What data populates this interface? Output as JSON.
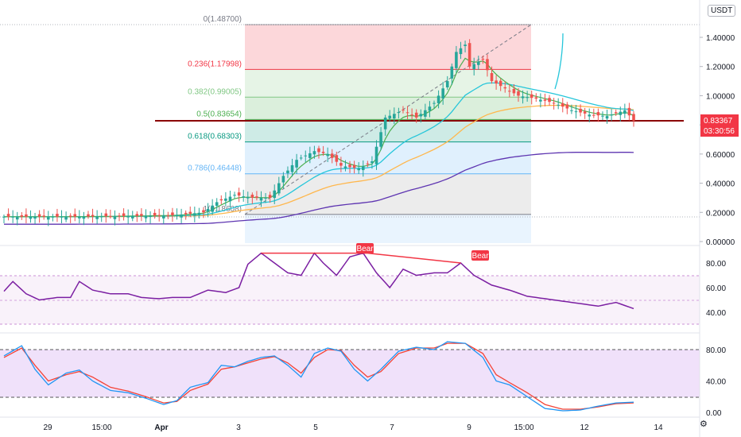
{
  "header": {
    "currency": "USDT"
  },
  "price_axis": {
    "ticks": [
      "1.40000",
      "1.20000",
      "1.00000",
      "0.80000",
      "0.60000",
      "0.40000",
      "0.20000",
      "0.00000"
    ]
  },
  "rsi_axis": {
    "ticks": [
      "80.00",
      "60.00",
      "40.00"
    ]
  },
  "stoch_axis": {
    "ticks": [
      "80.00",
      "40.00",
      "0.00"
    ]
  },
  "time_axis": {
    "ticks": [
      "29",
      "15:00",
      "Apr",
      "3",
      "5",
      "7",
      "9",
      "15:00",
      "12",
      "14"
    ]
  },
  "price_tag": {
    "value": "0.83367",
    "countdown": "03:30:56"
  },
  "fib_levels": [
    {
      "label": "0(1.48700)",
      "price": 1.487,
      "color": "#787b86"
    },
    {
      "label": "0.236(1.17998)",
      "price": 1.17998,
      "color": "#f23645"
    },
    {
      "label": "0.382(0.99005)",
      "price": 0.99005,
      "color": "#81c784"
    },
    {
      "label": "0.5(0.83654)",
      "price": 0.83654,
      "color": "#4caf50"
    },
    {
      "label": "0.618(0.68303)",
      "price": 0.68303,
      "color": "#089981"
    },
    {
      "label": "0.786(0.46448)",
      "price": 0.46448,
      "color": "#64b5f6"
    },
    {
      "label": "1(0.18608)",
      "price": 0.18608,
      "color": "#787b86"
    }
  ],
  "divergence_labels": [
    "Bear",
    "Bear"
  ],
  "colors": {
    "up": "#26a69a",
    "down": "#ef5350",
    "ma_fast": "#4caf50",
    "ma_mid": "#26c6da",
    "ma_slow": "#ffb74d",
    "ma_long": "#5e35b1",
    "rsi": "#7b1fa2",
    "stoch_k": "#2196f3",
    "stoch_d": "#f44336",
    "hline": "#8b0000"
  },
  "chart_data": {
    "type": "candlestick",
    "price_anchors": [
      [
        0,
        0.17
      ],
      [
        14,
        0.17
      ],
      [
        28,
        0.175
      ],
      [
        38,
        0.18
      ],
      [
        45,
        0.2
      ],
      [
        48,
        0.27
      ],
      [
        52,
        0.32
      ],
      [
        56,
        0.3
      ],
      [
        60,
        0.3
      ],
      [
        63,
        0.45
      ],
      [
        66,
        0.56
      ],
      [
        70,
        0.62
      ],
      [
        73,
        0.6
      ],
      [
        76,
        0.52
      ],
      [
        80,
        0.5
      ],
      [
        83,
        0.55
      ],
      [
        86,
        0.85
      ],
      [
        90,
        0.9
      ],
      [
        93,
        0.85
      ],
      [
        97,
        0.95
      ],
      [
        100,
        1.1
      ],
      [
        102,
        1.3
      ],
      [
        104,
        1.35
      ],
      [
        105,
        1.2
      ],
      [
        108,
        1.25
      ],
      [
        110,
        1.1
      ],
      [
        113,
        1.05
      ],
      [
        116,
        1.0
      ],
      [
        120,
        0.98
      ],
      [
        124,
        0.95
      ],
      [
        128,
        0.9
      ],
      [
        132,
        0.87
      ],
      [
        136,
        0.86
      ],
      [
        140,
        0.9
      ],
      [
        142,
        0.83
      ]
    ],
    "rsi_anchors": [
      [
        0,
        57
      ],
      [
        2,
        65
      ],
      [
        5,
        55
      ],
      [
        8,
        50
      ],
      [
        12,
        52
      ],
      [
        15,
        52
      ],
      [
        17,
        65
      ],
      [
        20,
        58
      ],
      [
        24,
        55
      ],
      [
        28,
        55
      ],
      [
        31,
        52
      ],
      [
        35,
        51
      ],
      [
        38,
        52
      ],
      [
        42,
        52
      ],
      [
        46,
        58
      ],
      [
        50,
        56
      ],
      [
        53,
        60
      ],
      [
        55,
        79
      ],
      [
        58,
        88
      ],
      [
        61,
        80
      ],
      [
        64,
        72
      ],
      [
        67,
        70
      ],
      [
        70,
        88
      ],
      [
        72,
        80
      ],
      [
        75,
        70
      ],
      [
        78,
        85
      ],
      [
        81,
        88
      ],
      [
        84,
        72
      ],
      [
        87,
        60
      ],
      [
        90,
        75
      ],
      [
        93,
        70
      ],
      [
        97,
        72
      ],
      [
        100,
        72
      ],
      [
        103,
        80
      ],
      [
        106,
        70
      ],
      [
        110,
        62
      ],
      [
        114,
        58
      ],
      [
        118,
        53
      ],
      [
        122,
        51
      ],
      [
        126,
        49
      ],
      [
        130,
        47
      ],
      [
        134,
        45
      ],
      [
        138,
        48
      ],
      [
        142,
        43
      ]
    ],
    "stoch_k_anchors": [
      [
        0,
        72
      ],
      [
        4,
        85
      ],
      [
        7,
        55
      ],
      [
        10,
        35
      ],
      [
        14,
        50
      ],
      [
        17,
        54
      ],
      [
        20,
        40
      ],
      [
        24,
        28
      ],
      [
        28,
        25
      ],
      [
        32,
        18
      ],
      [
        36,
        10
      ],
      [
        39,
        15
      ],
      [
        42,
        32
      ],
      [
        46,
        38
      ],
      [
        49,
        60
      ],
      [
        52,
        58
      ],
      [
        55,
        65
      ],
      [
        58,
        70
      ],
      [
        61,
        72
      ],
      [
        64,
        60
      ],
      [
        67,
        45
      ],
      [
        70,
        75
      ],
      [
        73,
        82
      ],
      [
        76,
        78
      ],
      [
        79,
        55
      ],
      [
        82,
        40
      ],
      [
        85,
        55
      ],
      [
        89,
        78
      ],
      [
        93,
        83
      ],
      [
        97,
        80
      ],
      [
        100,
        90
      ],
      [
        104,
        88
      ],
      [
        108,
        70
      ],
      [
        111,
        40
      ],
      [
        114,
        35
      ],
      [
        118,
        20
      ],
      [
        122,
        5
      ],
      [
        126,
        2
      ],
      [
        130,
        3
      ],
      [
        134,
        8
      ],
      [
        138,
        12
      ],
      [
        142,
        13
      ]
    ],
    "stoch_d_anchors": [
      [
        0,
        70
      ],
      [
        4,
        82
      ],
      [
        7,
        60
      ],
      [
        10,
        40
      ],
      [
        14,
        48
      ],
      [
        17,
        52
      ],
      [
        20,
        45
      ],
      [
        24,
        32
      ],
      [
        28,
        27
      ],
      [
        32,
        20
      ],
      [
        36,
        12
      ],
      [
        39,
        14
      ],
      [
        42,
        28
      ],
      [
        46,
        36
      ],
      [
        49,
        55
      ],
      [
        52,
        58
      ],
      [
        55,
        63
      ],
      [
        58,
        68
      ],
      [
        61,
        71
      ],
      [
        64,
        63
      ],
      [
        67,
        50
      ],
      [
        70,
        70
      ],
      [
        73,
        80
      ],
      [
        76,
        79
      ],
      [
        79,
        60
      ],
      [
        82,
        45
      ],
      [
        85,
        52
      ],
      [
        89,
        75
      ],
      [
        93,
        82
      ],
      [
        97,
        82
      ],
      [
        100,
        88
      ],
      [
        104,
        88
      ],
      [
        108,
        75
      ],
      [
        111,
        48
      ],
      [
        114,
        38
      ],
      [
        118,
        25
      ],
      [
        122,
        10
      ],
      [
        126,
        4
      ],
      [
        130,
        4
      ],
      [
        134,
        7
      ],
      [
        138,
        11
      ],
      [
        142,
        12
      ]
    ]
  }
}
